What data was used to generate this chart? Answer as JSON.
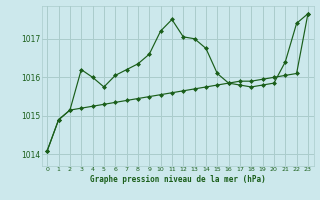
{
  "title": "Graphe pression niveau de la mer (hPa)",
  "bg_color": "#cce8ec",
  "grid_color": "#aacccc",
  "line_color": "#1a5e1a",
  "marker_color": "#1a5e1a",
  "xlim": [
    -0.5,
    23.5
  ],
  "ylim": [
    1013.7,
    1017.85
  ],
  "yticks": [
    1014,
    1015,
    1016,
    1017
  ],
  "xticks": [
    0,
    1,
    2,
    3,
    4,
    5,
    6,
    7,
    8,
    9,
    10,
    11,
    12,
    13,
    14,
    15,
    16,
    17,
    18,
    19,
    20,
    21,
    22,
    23
  ],
  "series": [
    [
      1014.1,
      1014.9,
      1015.15,
      1016.2,
      1016.0,
      1015.75,
      1016.05,
      1016.2,
      1016.35,
      1016.6,
      1017.2,
      1017.5,
      1017.05,
      1017.0,
      1016.75,
      1016.1,
      1015.85,
      1015.8,
      1015.75,
      1015.8,
      1015.85,
      1016.4,
      1017.4,
      1017.65
    ],
    [
      1014.1,
      1014.9,
      1015.15,
      1015.2,
      1015.25,
      1015.3,
      1015.35,
      1015.4,
      1015.45,
      1015.5,
      1015.55,
      1015.6,
      1015.65,
      1015.7,
      1015.75,
      1015.8,
      1015.85,
      1015.9,
      1015.9,
      1015.95,
      1016.0,
      1016.05,
      1016.1,
      1017.65
    ]
  ]
}
